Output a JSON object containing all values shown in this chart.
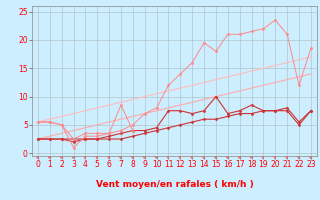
{
  "background_color": "#cceeff",
  "grid_color": "#aabbbb",
  "x_values": [
    0,
    1,
    2,
    3,
    4,
    5,
    6,
    7,
    8,
    9,
    10,
    11,
    12,
    13,
    14,
    15,
    16,
    17,
    18,
    19,
    20,
    21,
    22,
    23
  ],
  "series": [
    {
      "color": "#cc3333",
      "linewidth": 0.8,
      "marker": "D",
      "markersize": 1.5,
      "y": [
        2.5,
        2.5,
        2.5,
        2.5,
        2.5,
        2.5,
        2.5,
        2.5,
        3.0,
        3.5,
        4.0,
        4.5,
        5.0,
        5.5,
        6.0,
        6.0,
        6.5,
        7.0,
        7.0,
        7.5,
        7.5,
        7.5,
        5.0,
        7.5
      ]
    },
    {
      "color": "#cc3333",
      "linewidth": 0.8,
      "marker": "D",
      "markersize": 1.5,
      "y": [
        2.5,
        2.5,
        2.5,
        2.0,
        2.5,
        2.5,
        3.0,
        3.5,
        4.0,
        4.0,
        4.5,
        7.5,
        7.5,
        7.0,
        7.5,
        10.0,
        7.0,
        7.5,
        8.5,
        7.5,
        7.5,
        8.0,
        5.5,
        7.5
      ]
    },
    {
      "color": "#ff8888",
      "linewidth": 0.7,
      "marker": "D",
      "markersize": 1.5,
      "y": [
        5.5,
        5.5,
        5.0,
        1.0,
        3.0,
        3.0,
        3.5,
        8.5,
        4.0,
        null,
        null,
        null,
        null,
        null,
        null,
        null,
        null,
        null,
        null,
        null,
        null,
        null,
        null,
        null
      ]
    },
    {
      "color": "#ff8888",
      "linewidth": 0.7,
      "marker": "D",
      "markersize": 1.5,
      "y": [
        5.5,
        5.5,
        5.0,
        2.5,
        3.5,
        3.5,
        3.5,
        4.0,
        5.0,
        7.0,
        8.0,
        12.0,
        14.0,
        16.0,
        19.5,
        18.0,
        21.0,
        21.0,
        21.5,
        22.0,
        23.5,
        21.0,
        12.0,
        18.5
      ]
    },
    {
      "color": "#ffbbbb",
      "linewidth": 0.8,
      "marker": null,
      "y": [
        5.5,
        6.0,
        6.5,
        7.0,
        7.5,
        8.0,
        8.5,
        9.0,
        9.5,
        10.0,
        10.5,
        11.0,
        11.5,
        12.0,
        12.5,
        13.0,
        13.5,
        14.0,
        14.5,
        15.0,
        15.5,
        16.0,
        16.5,
        17.0
      ]
    },
    {
      "color": "#ffaaaa",
      "linewidth": 0.8,
      "marker": null,
      "y": [
        2.5,
        3.0,
        3.5,
        4.0,
        4.5,
        5.0,
        5.5,
        6.0,
        6.5,
        7.0,
        7.5,
        8.0,
        8.5,
        9.0,
        9.5,
        10.0,
        10.5,
        11.0,
        11.5,
        12.0,
        12.5,
        13.0,
        13.5,
        14.0
      ]
    }
  ],
  "xlabel": "Vent moyen/en rafales ( km/h )",
  "xlabel_color": "#ff0000",
  "xlabel_fontsize": 6.5,
  "ylabel_ticks": [
    0,
    5,
    10,
    15,
    20,
    25
  ],
  "xlim": [
    -0.5,
    23.5
  ],
  "ylim": [
    -0.5,
    26
  ],
  "tick_color": "#ff0000",
  "tick_fontsize": 5.5,
  "arrow_color": "#ff6666"
}
